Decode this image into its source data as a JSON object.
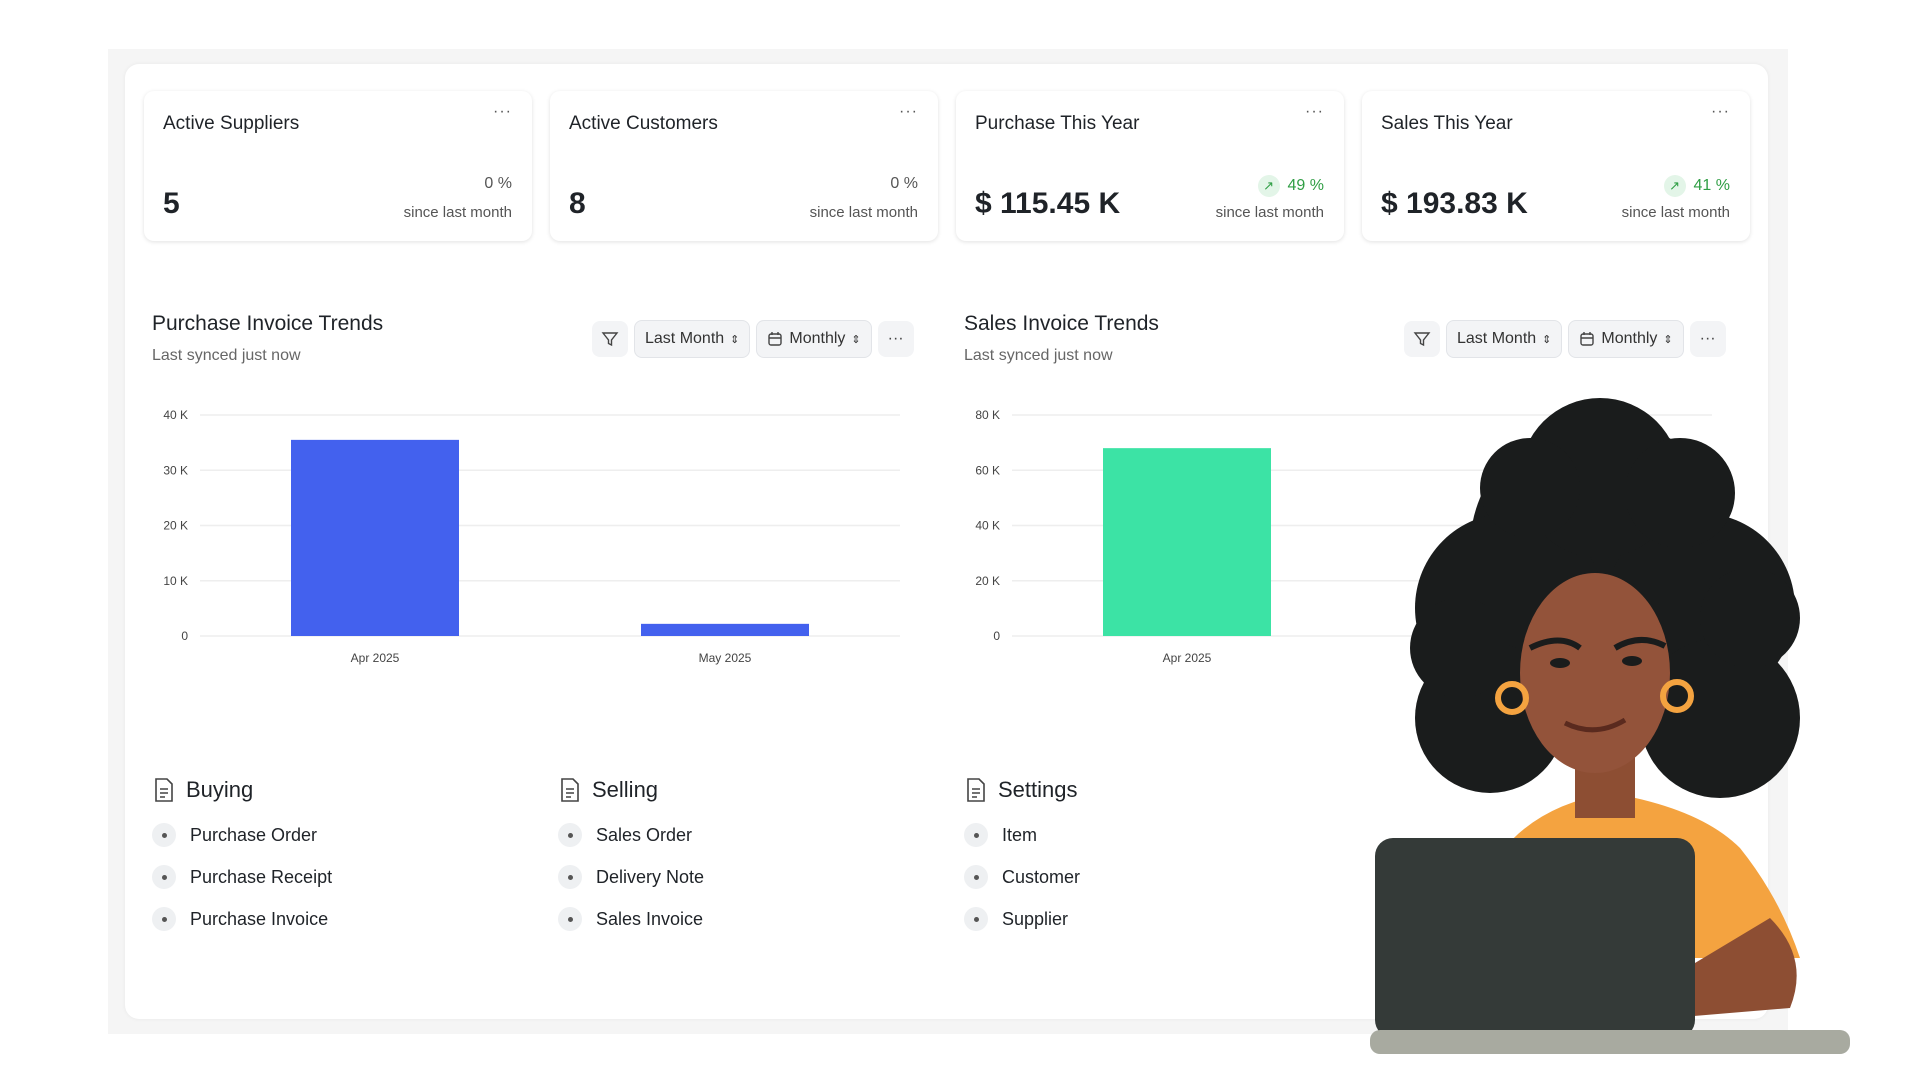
{
  "stats": [
    {
      "title": "Active Suppliers",
      "value": "5",
      "change": "0 %",
      "trend": "flat",
      "since": "since last month"
    },
    {
      "title": "Active Customers",
      "value": "8",
      "change": "0 %",
      "trend": "flat",
      "since": "since last month"
    },
    {
      "title": "Purchase This Year",
      "value": "$ 115.45 K",
      "change": "49 %",
      "trend": "up",
      "since": "since last month"
    },
    {
      "title": "Sales This Year",
      "value": "$ 193.83 K",
      "change": "41 %",
      "trend": "up",
      "since": "since last month"
    }
  ],
  "more_label": "···",
  "charts_header": [
    {
      "title": "Purchase Invoice Trends",
      "subtitle": "Last synced just now",
      "range": "Last Month",
      "period": "Monthly"
    },
    {
      "title": "Sales Invoice Trends",
      "subtitle": "Last synced just now",
      "range": "Last Month",
      "period": "Monthly"
    }
  ],
  "chart_data": [
    {
      "type": "bar",
      "categories": [
        "Apr 2025",
        "May 2025"
      ],
      "values": [
        35500,
        2200
      ],
      "ylim": [
        0,
        40000
      ],
      "yticks": [
        "0",
        "10 K",
        "20 K",
        "30 K",
        "40 K"
      ],
      "tick_values": [
        0,
        10000,
        20000,
        30000,
        40000
      ],
      "color": "#4361ee",
      "grid": true
    },
    {
      "type": "bar",
      "categories": [
        "Apr 2025"
      ],
      "values": [
        68000
      ],
      "ylim": [
        0,
        80000
      ],
      "yticks": [
        "0",
        "20 K",
        "40 K",
        "60 K",
        "80 K"
      ],
      "tick_values": [
        0,
        20000,
        40000,
        60000,
        80000
      ],
      "color": "#3ce3a5",
      "grid": true
    }
  ],
  "sections": [
    {
      "title": "Buying",
      "items": [
        "Purchase Order",
        "Purchase Receipt",
        "Purchase Invoice"
      ]
    },
    {
      "title": "Selling",
      "items": [
        "Sales Order",
        "Delivery Note",
        "Sales Invoice"
      ]
    },
    {
      "title": "Settings",
      "items": [
        "Item",
        "Customer",
        "Supplier"
      ]
    }
  ],
  "colors": {
    "up": "#2f9e44",
    "purchase_bar": "#4361ee",
    "sales_bar": "#3ce3a5"
  }
}
